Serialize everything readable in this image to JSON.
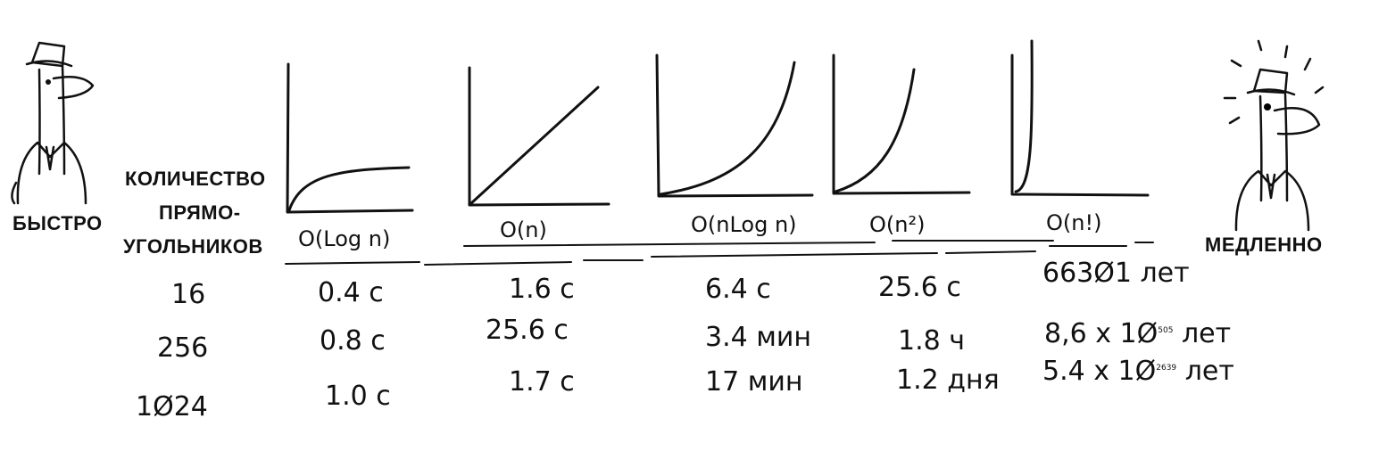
{
  "labels": {
    "fast": "БЫСТРО",
    "slow": "МЕДЛЕННО",
    "count_header": [
      "КОЛИЧЕСТВО",
      "ПРЯМО-",
      "УГОЛЬНИКОВ"
    ]
  },
  "chart_data": {
    "type": "table",
    "row_header": "КОЛИЧЕСТВО ПРЯМОУГОЛЬНИКОВ",
    "columns": [
      "O(Log n)",
      "O(n)",
      "O(nLog n)",
      "O(n²)",
      "O(n!)"
    ],
    "column_labels_as_drawn": [
      "O(Log n)",
      "O(n)",
      "O(nLog n)",
      "O(n²)",
      "O(n!)"
    ],
    "rows": [
      {
        "n": "16",
        "values": [
          "0.4 с",
          "1.6 с",
          "6.4 с",
          "25.6 с",
          "66301 лет"
        ]
      },
      {
        "n": "256",
        "values": [
          "0.8 с",
          "25.6 с",
          "3.4 мин",
          "1.8 ч",
          "8,6 x 10⁵⁰⁵ лет"
        ]
      },
      {
        "n": "1024",
        "values": [
          "1.0 с",
          "1.7 с",
          "17 мин",
          "1.2 дня",
          "5.4 x 10²⁶³⁹ лет"
        ]
      }
    ],
    "rows_as_drawn": {
      "n": [
        "16",
        "256",
        "1Ø24"
      ],
      "values": [
        [
          "0.4 с",
          "1.6 с",
          "6.4 с",
          "25.6 с",
          "663Ø1 лет"
        ],
        [
          "0.8 с",
          "25.6 с",
          "3.4 мин",
          "1.8 ч",
          "8,6 x 1Ø"
        ],
        [
          "1.0 с",
          "1.7 с",
          "17 мин",
          "1.2 дня",
          "5.4 x 1Ø"
        ]
      ],
      "exp_505": "505",
      "exp_2639": "2639",
      "unit_years": "лет"
    }
  }
}
